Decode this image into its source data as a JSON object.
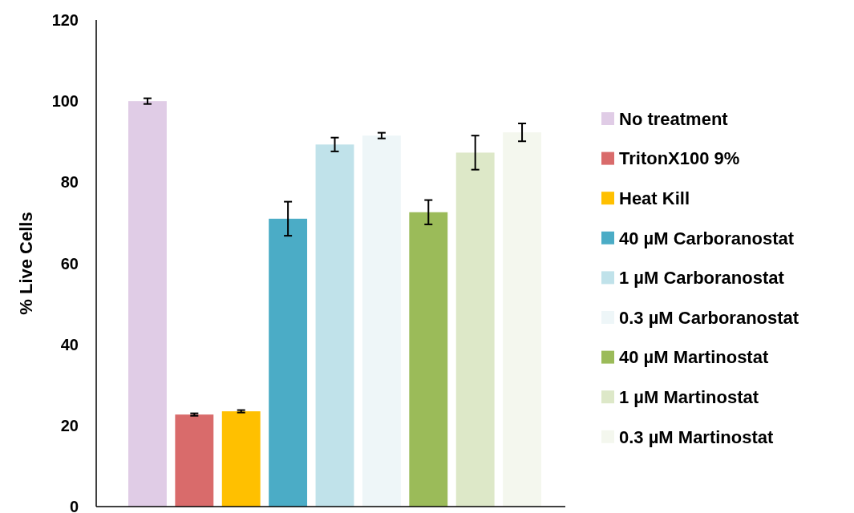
{
  "chart_data": {
    "type": "bar",
    "ylabel": "% Live Cells",
    "categories": [
      null,
      null,
      null,
      null,
      null,
      null,
      null,
      null,
      null
    ],
    "ylim": [
      0,
      120
    ],
    "yticks": [
      0,
      20,
      40,
      60,
      80,
      100,
      120
    ],
    "grid": false,
    "legend": "right",
    "series": [
      {
        "name": "No treatment",
        "color": "#e0cce6",
        "values": [
          100,
          null,
          null,
          null,
          null,
          null,
          null,
          null,
          null
        ],
        "errors": [
          0.7,
          null,
          null,
          null,
          null,
          null,
          null,
          null,
          null
        ]
      },
      {
        "name": "TritonX100 9%",
        "color": "#d96b6b",
        "values": [
          null,
          22.7,
          null,
          null,
          null,
          null,
          null,
          null,
          null
        ],
        "errors": [
          null,
          0.3,
          null,
          null,
          null,
          null,
          null,
          null,
          null
        ]
      },
      {
        "name": "Heat Kill",
        "color": "#ffc000",
        "values": [
          null,
          null,
          23.5,
          null,
          null,
          null,
          null,
          null,
          null
        ],
        "errors": [
          null,
          null,
          0.3,
          null,
          null,
          null,
          null,
          null,
          null
        ]
      },
      {
        "name": "40 µM Carboranostat",
        "color": "#4bacc6",
        "values": [
          null,
          null,
          null,
          71,
          null,
          null,
          null,
          null,
          null
        ],
        "errors": [
          null,
          null,
          null,
          4.2,
          null,
          null,
          null,
          null,
          null
        ]
      },
      {
        "name": "1 µM Carboranostat",
        "color": "#c0e2ea",
        "values": [
          null,
          null,
          null,
          null,
          89.3,
          null,
          null,
          null,
          null
        ],
        "errors": [
          null,
          null,
          null,
          null,
          1.7,
          null,
          null,
          null,
          null
        ]
      },
      {
        "name": "0.3 µM Carboranostat",
        "color": "#eef6f8",
        "values": [
          null,
          null,
          null,
          null,
          null,
          91.5,
          null,
          null,
          null
        ],
        "errors": [
          null,
          null,
          null,
          null,
          null,
          0.7,
          null,
          null,
          null
        ]
      },
      {
        "name": "40 µM Martinostat",
        "color": "#9bbb59",
        "values": [
          null,
          null,
          null,
          null,
          null,
          null,
          72.6,
          null,
          null
        ],
        "errors": [
          null,
          null,
          null,
          null,
          null,
          null,
          3,
          null,
          null
        ]
      },
      {
        "name": "1 µM Martinostat",
        "color": "#dde8c8",
        "values": [
          null,
          null,
          null,
          null,
          null,
          null,
          null,
          87.3,
          null
        ],
        "errors": [
          null,
          null,
          null,
          null,
          null,
          null,
          null,
          4.2,
          null
        ]
      },
      {
        "name": "0.3 µM Martinostat",
        "color": "#f4f7ee",
        "values": [
          null,
          null,
          null,
          null,
          null,
          null,
          null,
          null,
          92.3
        ],
        "errors": [
          null,
          null,
          null,
          null,
          null,
          null,
          null,
          null,
          2.2
        ]
      }
    ]
  }
}
